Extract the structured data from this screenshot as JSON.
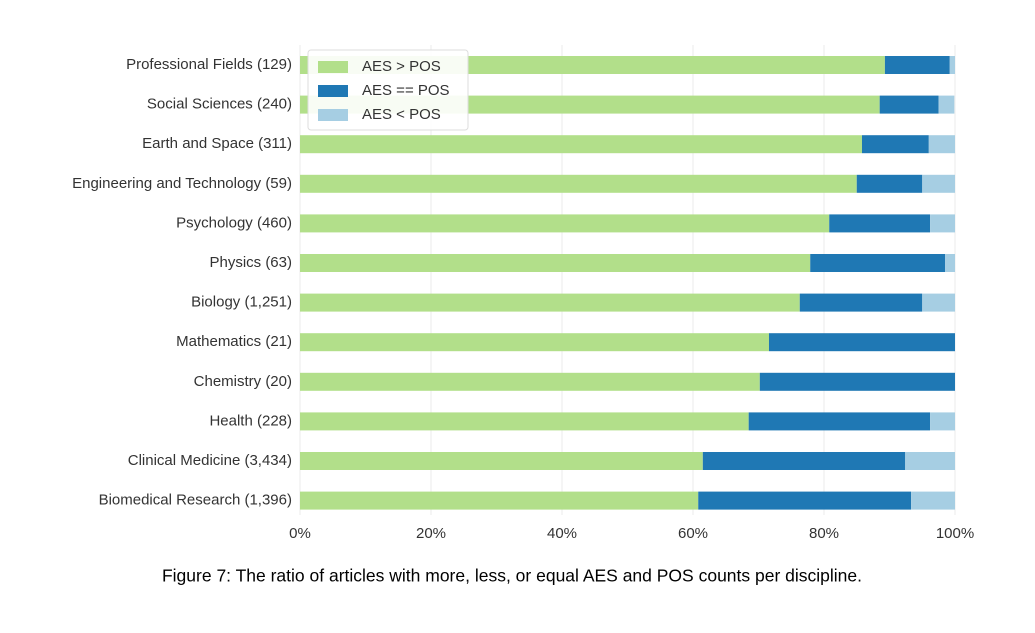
{
  "chart_data": {
    "type": "stacked-barh",
    "caption": "Figure 7: The ratio of articles with more, less, or equal AES and POS counts per discipline.",
    "categories": [
      "Professional Fields (129)",
      "Social Sciences (240)",
      "Earth and Space (311)",
      "Engineering and Technology (59)",
      "Psychology (460)",
      "Physics (63)",
      "Biology (1,251)",
      "Mathematics (21)",
      "Chemistry (20)",
      "Health (228)",
      "Clinical Medicine (3,434)",
      "Biomedical Research (1,396)"
    ],
    "series": [
      {
        "name": "AES > POS",
        "color": "#b2df8a",
        "values": [
          89.3,
          88.5,
          85.8,
          85.0,
          80.8,
          77.9,
          76.3,
          71.6,
          70.2,
          68.5,
          61.5,
          60.8
        ]
      },
      {
        "name": "AES == POS",
        "color": "#1f78b4",
        "values": [
          9.9,
          9.0,
          10.2,
          10.0,
          15.4,
          20.6,
          18.7,
          28.4,
          29.8,
          27.7,
          30.9,
          32.5
        ]
      },
      {
        "name": "AES < POS",
        "color": "#a6cee3",
        "values": [
          0.8,
          2.4,
          4.0,
          5.0,
          3.8,
          1.5,
          5.0,
          0,
          0,
          3.8,
          7.6,
          6.7
        ]
      }
    ],
    "xlim": [
      0,
      100
    ],
    "xticks": [
      {
        "value": 0,
        "label": "0%"
      },
      {
        "value": 20,
        "label": "20%"
      },
      {
        "value": 40,
        "label": "40%"
      },
      {
        "value": 60,
        "label": "60%"
      },
      {
        "value": 80,
        "label": "80%"
      },
      {
        "value": 100,
        "label": "100%"
      }
    ],
    "grid": true,
    "legend": "upper left"
  }
}
